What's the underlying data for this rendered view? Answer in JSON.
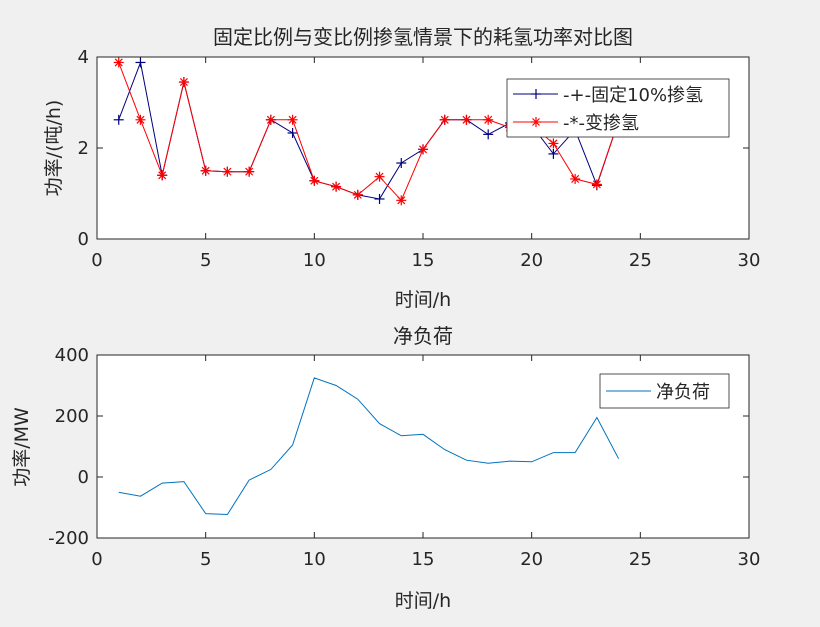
{
  "chart_data": [
    {
      "type": "line",
      "title": "固定比例与变比例掺氢情景下的耗氢功率对比图",
      "xlabel": "时间/h",
      "ylabel": "功率/(吨/h)",
      "xlim": [
        0,
        30
      ],
      "ylim": [
        0,
        4
      ],
      "xticks": [
        "0",
        "5",
        "10",
        "15",
        "20",
        "25",
        "30"
      ],
      "yticks": [
        "0",
        "2",
        "4"
      ],
      "legend_position": "top-right",
      "series": [
        {
          "name": "-+-固定10%掺氢",
          "color": "#00007f",
          "marker": "+",
          "x": [
            1,
            2,
            3,
            4,
            5,
            6,
            7,
            8,
            9,
            10,
            11,
            12,
            13,
            14,
            15,
            16,
            17,
            18,
            19,
            20,
            21,
            22,
            23,
            24
          ],
          "values": [
            2.62,
            3.88,
            1.4,
            3.45,
            1.5,
            1.48,
            1.48,
            2.62,
            2.33,
            1.28,
            1.15,
            0.97,
            0.88,
            1.67,
            1.97,
            2.62,
            2.62,
            2.3,
            2.55,
            2.5,
            1.87,
            2.4,
            1.18,
            2.6
          ]
        },
        {
          "name": "-*-变掺氢",
          "color": "#ff0000",
          "marker": "*",
          "x": [
            1,
            2,
            3,
            4,
            5,
            6,
            7,
            8,
            9,
            10,
            11,
            12,
            13,
            14,
            15,
            16,
            17,
            18,
            19,
            20,
            21,
            22,
            23,
            24
          ],
          "values": [
            3.88,
            2.62,
            1.4,
            3.45,
            1.5,
            1.48,
            1.48,
            2.62,
            2.62,
            1.28,
            1.15,
            0.97,
            1.37,
            0.85,
            1.97,
            2.62,
            2.62,
            2.62,
            2.45,
            2.5,
            2.1,
            1.32,
            1.2,
            2.6
          ]
        }
      ]
    },
    {
      "type": "line",
      "title": "净负荷",
      "xlabel": "时间/h",
      "ylabel": "功率/MW",
      "xlim": [
        0,
        30
      ],
      "ylim": [
        -200,
        400
      ],
      "xticks": [
        "0",
        "5",
        "10",
        "15",
        "20",
        "25",
        "30"
      ],
      "yticks": [
        "-200",
        "0",
        "200",
        "400"
      ],
      "legend_position": "top-right",
      "series": [
        {
          "name": "净负荷",
          "color": "#0072bd",
          "x": [
            1,
            2,
            3,
            4,
            5,
            6,
            7,
            8,
            9,
            10,
            11,
            12,
            13,
            14,
            15,
            16,
            17,
            18,
            19,
            20,
            21,
            22,
            23,
            24
          ],
          "values": [
            -50,
            -63,
            -20,
            -15,
            -120,
            -123,
            -10,
            25,
            105,
            325,
            300,
            255,
            175,
            135,
            140,
            90,
            55,
            45,
            52,
            50,
            80,
            80,
            195,
            60
          ]
        }
      ]
    }
  ]
}
